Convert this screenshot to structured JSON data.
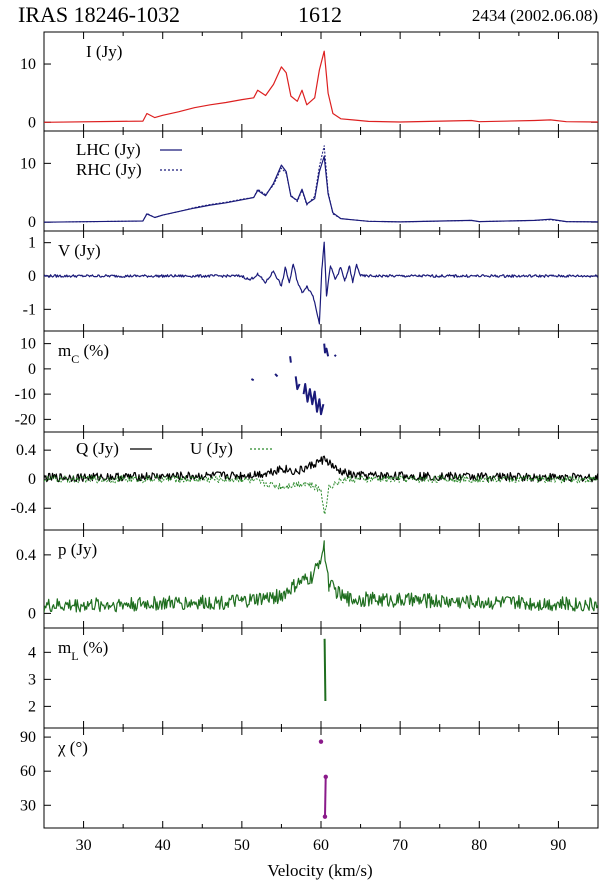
{
  "header": {
    "source": "IRAS 18246-1032",
    "line": "1612",
    "epoch": "2434 (2002.06.08)"
  },
  "colors": {
    "I": "#dd2020",
    "circular": "#1a1a7a",
    "Q": "#000000",
    "U": "#2a8a2a",
    "p": "#1f6e1f",
    "mL": "#1f6e1f",
    "chi": "#8a1a8a"
  },
  "chart_data": {
    "type": "line",
    "xlabel": "Velocity (km/s)",
    "xlim": [
      25,
      95
    ],
    "xticks": [
      30,
      40,
      50,
      60,
      70,
      80,
      90
    ],
    "panels": [
      {
        "id": "I",
        "label": "I (Jy)",
        "ylim": [
          -1.5,
          15.5
        ],
        "yticks": [
          0,
          10
        ],
        "series": [
          {
            "name": "I (Jy)",
            "color": "I",
            "style": "solid",
            "key": "I",
            "points": [
              [
                25,
                0
              ],
              [
                37.5,
                0.2
              ],
              [
                38,
                1.5
              ],
              [
                39,
                0.8
              ],
              [
                40,
                1.2
              ],
              [
                42,
                1.8
              ],
              [
                44,
                2.5
              ],
              [
                46,
                3.0
              ],
              [
                48,
                3.4
              ],
              [
                50,
                3.9
              ],
              [
                51.5,
                4.2
              ],
              [
                52,
                5.5
              ],
              [
                53,
                4.6
              ],
              [
                54,
                6.5
              ],
              [
                55,
                9.5
              ],
              [
                55.6,
                8.5
              ],
              [
                56.2,
                4.5
              ],
              [
                57,
                3.6
              ],
              [
                57.6,
                5.5
              ],
              [
                58.2,
                3.0
              ],
              [
                59.2,
                4.2
              ],
              [
                59.8,
                9.0
              ],
              [
                60.4,
                12.2
              ],
              [
                60.9,
                5.0
              ],
              [
                61.5,
                1.5
              ],
              [
                62.5,
                0.6
              ],
              [
                64,
                0.4
              ],
              [
                66,
                0.15
              ],
              [
                70,
                0.05
              ],
              [
                79,
                0.3
              ],
              [
                80,
                0.1
              ],
              [
                87,
                0.3
              ],
              [
                89,
                0.4
              ],
              [
                91,
                0.1
              ],
              [
                95,
                0.05
              ]
            ]
          }
        ]
      },
      {
        "id": "LR",
        "label": "",
        "ylim": [
          -1.5,
          15.5
        ],
        "yticks": [
          0,
          10
        ],
        "legend": [
          {
            "label": "LHC (Jy)",
            "style": "solid"
          },
          {
            "label": "RHC (Jy)",
            "style": "dotted"
          }
        ],
        "series": [
          {
            "name": "LHC (Jy)",
            "color": "circular",
            "style": "solid",
            "key": "LHC",
            "points": [
              [
                25,
                0
              ],
              [
                37.5,
                0.2
              ],
              [
                38,
                1.4
              ],
              [
                39,
                0.8
              ],
              [
                40,
                1.2
              ],
              [
                42,
                1.8
              ],
              [
                44,
                2.4
              ],
              [
                46,
                2.9
              ],
              [
                48,
                3.3
              ],
              [
                50,
                3.8
              ],
              [
                51.5,
                4.2
              ],
              [
                52,
                5.4
              ],
              [
                53,
                4.5
              ],
              [
                54,
                6.6
              ],
              [
                55,
                9.7
              ],
              [
                55.6,
                8.6
              ],
              [
                56.2,
                4.4
              ],
              [
                57,
                3.7
              ],
              [
                57.6,
                5.6
              ],
              [
                58.2,
                3.1
              ],
              [
                59.2,
                4.0
              ],
              [
                59.8,
                8.6
              ],
              [
                60.4,
                11.2
              ],
              [
                60.9,
                4.8
              ],
              [
                61.5,
                1.6
              ],
              [
                62.5,
                0.6
              ],
              [
                64,
                0.4
              ],
              [
                66,
                0.15
              ],
              [
                70,
                0.05
              ],
              [
                79,
                0.3
              ],
              [
                80,
                0.1
              ],
              [
                87,
                0.3
              ],
              [
                89,
                0.5
              ],
              [
                91,
                0.1
              ],
              [
                95,
                0.05
              ]
            ]
          },
          {
            "name": "RHC (Jy)",
            "color": "circular",
            "style": "dotted",
            "key": "RHC",
            "points": [
              [
                25,
                0
              ],
              [
                37.5,
                0.2
              ],
              [
                38,
                1.5
              ],
              [
                39,
                0.8
              ],
              [
                40,
                1.2
              ],
              [
                42,
                1.8
              ],
              [
                44,
                2.5
              ],
              [
                46,
                3.0
              ],
              [
                48,
                3.4
              ],
              [
                50,
                3.9
              ],
              [
                51.5,
                4.2
              ],
              [
                52,
                5.6
              ],
              [
                53,
                4.7
              ],
              [
                54,
                6.3
              ],
              [
                55,
                9.2
              ],
              [
                55.6,
                8.3
              ],
              [
                56.2,
                4.6
              ],
              [
                57,
                3.5
              ],
              [
                57.6,
                5.4
              ],
              [
                58.2,
                2.9
              ],
              [
                59.2,
                4.4
              ],
              [
                59.8,
                9.5
              ],
              [
                60.4,
                13.0
              ],
              [
                60.9,
                5.2
              ],
              [
                61.5,
                1.4
              ],
              [
                62.5,
                0.6
              ],
              [
                64,
                0.4
              ],
              [
                66,
                0.15
              ],
              [
                70,
                0.05
              ],
              [
                79,
                0.3
              ],
              [
                80,
                0.1
              ],
              [
                87,
                0.3
              ],
              [
                89,
                0.4
              ],
              [
                91,
                0.1
              ],
              [
                95,
                0.05
              ]
            ]
          }
        ]
      },
      {
        "id": "V",
        "label": "V (Jy)",
        "ylim": [
          -1.65,
          1.35
        ],
        "yticks": [
          -1,
          0,
          1
        ],
        "series": [
          {
            "name": "V (Jy)",
            "color": "circular",
            "style": "solid",
            "key": "V",
            "noise": 0.04,
            "points": [
              [
                25,
                0
              ],
              [
                50,
                0
              ],
              [
                51,
                -0.12
              ],
              [
                52,
                0.05
              ],
              [
                53,
                -0.2
              ],
              [
                54,
                0.15
              ],
              [
                55,
                -0.3
              ],
              [
                55.5,
                0.25
              ],
              [
                56,
                -0.2
              ],
              [
                56.5,
                0.35
              ],
              [
                57,
                -0.15
              ],
              [
                57.6,
                -0.5
              ],
              [
                58.2,
                -0.3
              ],
              [
                59,
                -0.6
              ],
              [
                59.8,
                -1.4
              ],
              [
                60.1,
                0.2
              ],
              [
                60.4,
                1.0
              ],
              [
                60.7,
                -0.6
              ],
              [
                61.2,
                0.3
              ],
              [
                61.8,
                -0.1
              ],
              [
                62.5,
                0.25
              ],
              [
                63,
                -0.15
              ],
              [
                63.6,
                0.3
              ],
              [
                64,
                -0.2
              ],
              [
                64.5,
                0.35
              ],
              [
                65,
                0
              ],
              [
                95,
                0
              ]
            ]
          }
        ]
      },
      {
        "id": "mC",
        "label": "m",
        "label_sub": "C",
        "label_tail": " (%)",
        "ylim": [
          -25,
          15
        ],
        "yticks": [
          -20,
          -10,
          0,
          10
        ],
        "segments": [
          {
            "points": [
              [
                56.1,
                5
              ],
              [
                56.2,
                2.5
              ]
            ]
          },
          {
            "points": [
              [
                60.4,
                10
              ],
              [
                60.5,
                6.5
              ],
              [
                60.7,
                8
              ],
              [
                60.9,
                5
              ]
            ]
          },
          {
            "points": [
              [
                61.7,
                5.5
              ],
              [
                61.9,
                5
              ]
            ]
          },
          {
            "points": [
              [
                51.2,
                -4
              ],
              [
                51.5,
                -4.5
              ]
            ]
          },
          {
            "points": [
              [
                54.2,
                -2
              ],
              [
                54.5,
                -3
              ]
            ]
          },
          {
            "points": [
              [
                56.8,
                -3
              ],
              [
                57.0,
                -8
              ],
              [
                57.3,
                -6
              ]
            ]
          },
          {
            "points": [
              [
                57.8,
                -10
              ],
              [
                58.0,
                -6
              ],
              [
                58.3,
                -13
              ],
              [
                58.6,
                -8
              ],
              [
                58.9,
                -14
              ],
              [
                59.2,
                -9
              ],
              [
                59.5,
                -17
              ],
              [
                59.8,
                -12
              ],
              [
                60.0,
                -18
              ],
              [
                60.3,
                -14
              ]
            ]
          }
        ]
      },
      {
        "id": "QU",
        "label": "",
        "ylim": [
          -0.7,
          0.65
        ],
        "yticks": [
          -0.4,
          0,
          0.4
        ],
        "yticklabels": [
          "-0.4",
          "0",
          "0.4"
        ],
        "legend": [
          {
            "label": "Q (Jy)",
            "style": "solid"
          },
          {
            "label": "U (Jy)",
            "style": "dotted"
          }
        ],
        "series": [
          {
            "name": "Q (Jy)",
            "color": "Q",
            "style": "solid",
            "key": "Q",
            "noise": 0.06,
            "points": [
              [
                25,
                0.02
              ],
              [
                50,
                0.05
              ],
              [
                53,
                0.08
              ],
              [
                55,
                0.15
              ],
              [
                57,
                0.1
              ],
              [
                59,
                0.2
              ],
              [
                60.5,
                0.28
              ],
              [
                62,
                0.12
              ],
              [
                64,
                0.05
              ],
              [
                95,
                0.02
              ]
            ]
          },
          {
            "name": "U (Jy)",
            "color": "U",
            "style": "dotted",
            "key": "U",
            "noise": 0.05,
            "points": [
              [
                25,
                0
              ],
              [
                50,
                0
              ],
              [
                55,
                -0.1
              ],
              [
                58,
                -0.05
              ],
              [
                60,
                -0.15
              ],
              [
                60.5,
                -0.48
              ],
              [
                61,
                -0.1
              ],
              [
                63,
                0
              ],
              [
                95,
                0
              ]
            ]
          }
        ]
      },
      {
        "id": "p",
        "label": "p (Jy)",
        "ylim": [
          -0.1,
          0.57
        ],
        "yticks": [
          0,
          0.4
        ],
        "series": [
          {
            "name": "p (Jy)",
            "color": "p",
            "style": "solid",
            "key": "p",
            "noise": 0.05,
            "floor": true,
            "points": [
              [
                25,
                0.05
              ],
              [
                50,
                0.08
              ],
              [
                55,
                0.12
              ],
              [
                57,
                0.2
              ],
              [
                59,
                0.25
              ],
              [
                60.4,
                0.45
              ],
              [
                61,
                0.2
              ],
              [
                63,
                0.1
              ],
              [
                95,
                0.06
              ]
            ]
          }
        ]
      },
      {
        "id": "mL",
        "label": "m",
        "label_sub": "L",
        "label_tail": " (%)",
        "ylim": [
          1.2,
          4.9
        ],
        "yticks": [
          2,
          3,
          4
        ],
        "segments": [
          {
            "points": [
              [
                60.45,
                4.5
              ],
              [
                60.55,
                2.2
              ]
            ]
          }
        ]
      },
      {
        "id": "chi",
        "label": "χ (°)",
        "ylim": [
          10,
          98
        ],
        "yticks": [
          30,
          60,
          90
        ],
        "dots": [
          [
            60.0,
            86
          ],
          [
            60.6,
            55
          ],
          [
            60.5,
            20
          ]
        ],
        "segments": [
          {
            "points": [
              [
                60.6,
                55
              ],
              [
                60.5,
                20
              ]
            ]
          }
        ]
      }
    ]
  }
}
